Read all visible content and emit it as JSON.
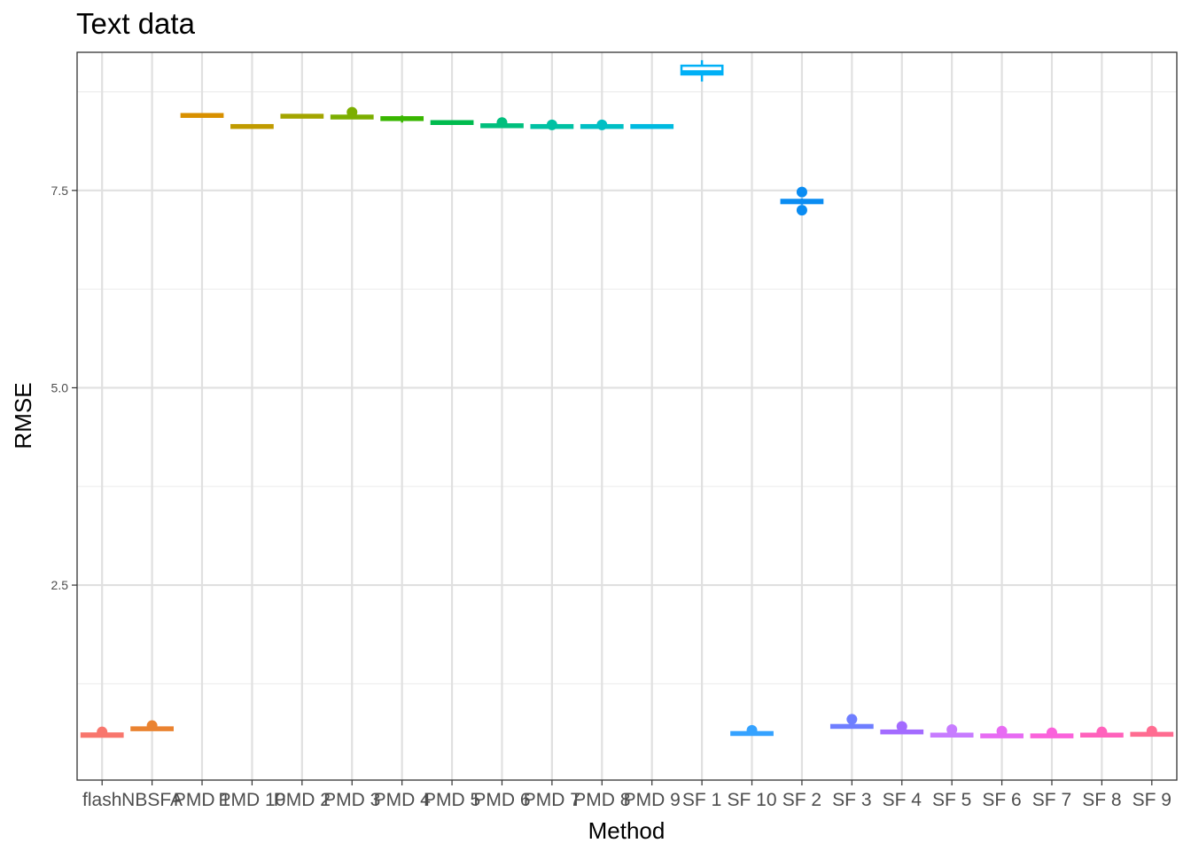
{
  "chart_data": {
    "type": "boxplot",
    "title": "Text data",
    "xlabel": "Method",
    "ylabel": "RMSE",
    "ylim": [
      0.03,
      9.25
    ],
    "yticks": [
      2.5,
      5.0,
      7.5
    ],
    "ytick_labels": [
      "2.5",
      "5.0",
      "7.5"
    ],
    "grid": true,
    "legend": "none",
    "categories": [
      "flash",
      "NBSFA",
      "PMD 1",
      "PMD 10",
      "PMD 2",
      "PMD 3",
      "PMD 4",
      "PMD 5",
      "PMD 6",
      "PMD 7",
      "PMD 8",
      "PMD 9",
      "SF 1",
      "SF 10",
      "SF 2",
      "SF 3",
      "SF 4",
      "SF 5",
      "SF 6",
      "SF 7",
      "SF 8",
      "SF 9"
    ],
    "series": [
      {
        "category": "flash",
        "color": "#F8766D",
        "q1": 0.58,
        "median": 0.6,
        "q3": 0.62,
        "whisker_low": 0.57,
        "whisker_high": 0.63,
        "outliers": [
          0.64
        ]
      },
      {
        "category": "NBSFA",
        "color": "#EA8331",
        "q1": 0.67,
        "median": 0.68,
        "q3": 0.69,
        "whisker_low": 0.67,
        "whisker_high": 0.7,
        "outliers": [
          0.72
        ]
      },
      {
        "category": "PMD 1",
        "color": "#D89000",
        "q1": 8.44,
        "median": 8.45,
        "q3": 8.46,
        "whisker_low": 8.43,
        "whisker_high": 8.47,
        "outliers": []
      },
      {
        "category": "PMD 10",
        "color": "#C09B00",
        "q1": 8.3,
        "median": 8.31,
        "q3": 8.32,
        "whisker_low": 8.29,
        "whisker_high": 8.33,
        "outliers": []
      },
      {
        "category": "PMD 2",
        "color": "#A3A500",
        "q1": 8.43,
        "median": 8.44,
        "q3": 8.45,
        "whisker_low": 8.42,
        "whisker_high": 8.46,
        "outliers": []
      },
      {
        "category": "PMD 3",
        "color": "#7CAE00",
        "q1": 8.42,
        "median": 8.43,
        "q3": 8.44,
        "whisker_low": 8.41,
        "whisker_high": 8.45,
        "outliers": [
          8.49
        ]
      },
      {
        "category": "PMD 4",
        "color": "#39B600",
        "q1": 8.4,
        "median": 8.41,
        "q3": 8.42,
        "whisker_low": 8.36,
        "whisker_high": 8.45,
        "outliers": []
      },
      {
        "category": "PMD 5",
        "color": "#00BB4E",
        "q1": 8.35,
        "median": 8.36,
        "q3": 8.37,
        "whisker_low": 8.33,
        "whisker_high": 8.39,
        "outliers": []
      },
      {
        "category": "PMD 6",
        "color": "#00BF7D",
        "q1": 8.31,
        "median": 8.32,
        "q3": 8.33,
        "whisker_low": 8.3,
        "whisker_high": 8.34,
        "outliers": [
          8.36
        ]
      },
      {
        "category": "PMD 7",
        "color": "#00C1A3",
        "q1": 8.3,
        "median": 8.31,
        "q3": 8.32,
        "whisker_low": 8.29,
        "whisker_high": 8.33,
        "outliers": [
          8.33
        ]
      },
      {
        "category": "PMD 8",
        "color": "#00BFC4",
        "q1": 8.3,
        "median": 8.31,
        "q3": 8.32,
        "whisker_low": 8.29,
        "whisker_high": 8.33,
        "outliers": [
          8.33
        ]
      },
      {
        "category": "PMD 9",
        "color": "#00BAE0",
        "q1": 8.3,
        "median": 8.31,
        "q3": 8.32,
        "whisker_low": 8.29,
        "whisker_high": 8.33,
        "outliers": []
      },
      {
        "category": "SF 1",
        "color": "#00B0F6",
        "q1": 8.97,
        "median": 9.0,
        "q3": 9.08,
        "whisker_low": 8.88,
        "whisker_high": 9.15,
        "outliers": []
      },
      {
        "category": "SF 10",
        "color": "#35A2FF",
        "q1": 0.61,
        "median": 0.62,
        "q3": 0.63,
        "whisker_low": 0.6,
        "whisker_high": 0.64,
        "outliers": [
          0.66
        ]
      },
      {
        "category": "SF 2",
        "color": "#0A8CF2",
        "q1": 7.34,
        "median": 7.36,
        "q3": 7.38,
        "whisker_low": 7.32,
        "whisker_high": 7.4,
        "outliers": [
          7.25,
          7.48
        ]
      },
      {
        "category": "SF 3",
        "color": "#6F7EFF",
        "q1": 0.7,
        "median": 0.71,
        "q3": 0.72,
        "whisker_low": 0.69,
        "whisker_high": 0.73,
        "outliers": [
          0.8
        ]
      },
      {
        "category": "SF 4",
        "color": "#A36BFF",
        "q1": 0.63,
        "median": 0.64,
        "q3": 0.65,
        "whisker_low": 0.62,
        "whisker_high": 0.66,
        "outliers": [
          0.71
        ]
      },
      {
        "category": "SF 5",
        "color": "#C77CFF",
        "q1": 0.59,
        "median": 0.6,
        "q3": 0.61,
        "whisker_low": 0.58,
        "whisker_high": 0.62,
        "outliers": [
          0.67
        ]
      },
      {
        "category": "SF 6",
        "color": "#E76BF3",
        "q1": 0.58,
        "median": 0.59,
        "q3": 0.6,
        "whisker_low": 0.57,
        "whisker_high": 0.61,
        "outliers": [
          0.65
        ]
      },
      {
        "category": "SF 7",
        "color": "#FA62DB",
        "q1": 0.58,
        "median": 0.59,
        "q3": 0.6,
        "whisker_low": 0.57,
        "whisker_high": 0.61,
        "outliers": [
          0.63
        ]
      },
      {
        "category": "SF 8",
        "color": "#FF62BC",
        "q1": 0.59,
        "median": 0.6,
        "q3": 0.61,
        "whisker_low": 0.58,
        "whisker_high": 0.62,
        "outliers": [
          0.64
        ]
      },
      {
        "category": "SF 9",
        "color": "#FF6C91",
        "q1": 0.6,
        "median": 0.61,
        "q3": 0.62,
        "whisker_low": 0.59,
        "whisker_high": 0.63,
        "outliers": [
          0.65
        ]
      }
    ]
  }
}
